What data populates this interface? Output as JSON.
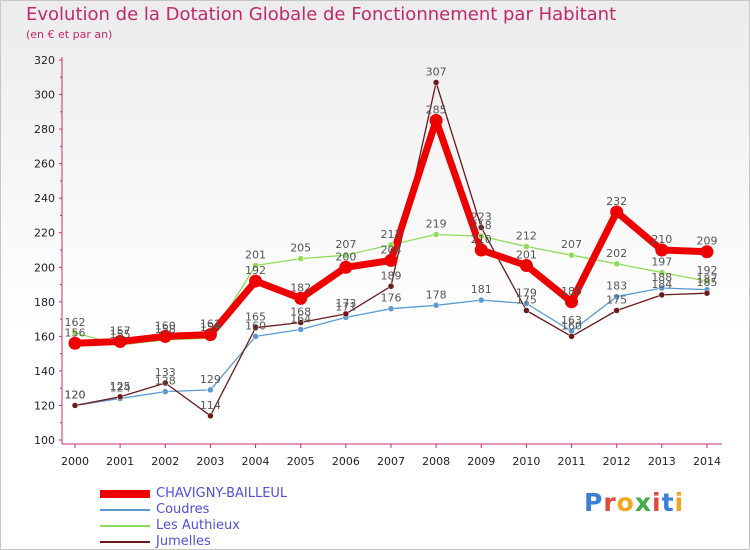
{
  "header": {
    "title": "Evolution de la Dotation Globale de Fonctionnement par Habitant",
    "subtitle": "(en € et par an)"
  },
  "logo": {
    "text": "Proxiti"
  },
  "colors": {
    "title": "#c0296b",
    "legend_text": "#4f4fdd",
    "chavigny": "#ee0000",
    "coudres": "#5a9bd4",
    "authieux": "#8fdc5a",
    "jumelles": "#6b1a1a"
  },
  "chart_data": {
    "type": "line",
    "title": "Evolution de la Dotation Globale de Fonctionnement par Habitant",
    "ylabel": "(en € et par an)",
    "xlabel": "",
    "ylim": [
      100,
      320
    ],
    "yticks": [
      100,
      120,
      140,
      160,
      180,
      200,
      220,
      240,
      260,
      280,
      300,
      320
    ],
    "grid": false,
    "categories": [
      "2000",
      "2001",
      "2002",
      "2003",
      "2004",
      "2005",
      "2006",
      "2007",
      "2008",
      "2009",
      "2010",
      "2011",
      "2012",
      "2013",
      "2014"
    ],
    "series": [
      {
        "name": "CHAVIGNY-BAILLEUL",
        "color": "#ee0000",
        "values": [
          156,
          157,
          160,
          161,
          192,
          182,
          200,
          204,
          285,
          210,
          201,
          180,
          232,
          210,
          209
        ]
      },
      {
        "name": "Coudres",
        "color": "#5a9bd4",
        "values": [
          120,
          124,
          128,
          129,
          160,
          164,
          171,
          176,
          178,
          181,
          179,
          163,
          183,
          188,
          187
        ]
      },
      {
        "name": "Les Authieux",
        "color": "#8fdc5a",
        "values": [
          162,
          155,
          158,
          159,
          201,
          205,
          207,
          213,
          219,
          218,
          212,
          207,
          202,
          197,
          192
        ]
      },
      {
        "name": "Jumelles",
        "color": "#6b1a1a",
        "values": [
          120,
          125,
          133,
          114,
          165,
          168,
          173,
          189,
          307,
          223,
          175,
          160,
          175,
          184,
          185
        ]
      }
    ]
  }
}
